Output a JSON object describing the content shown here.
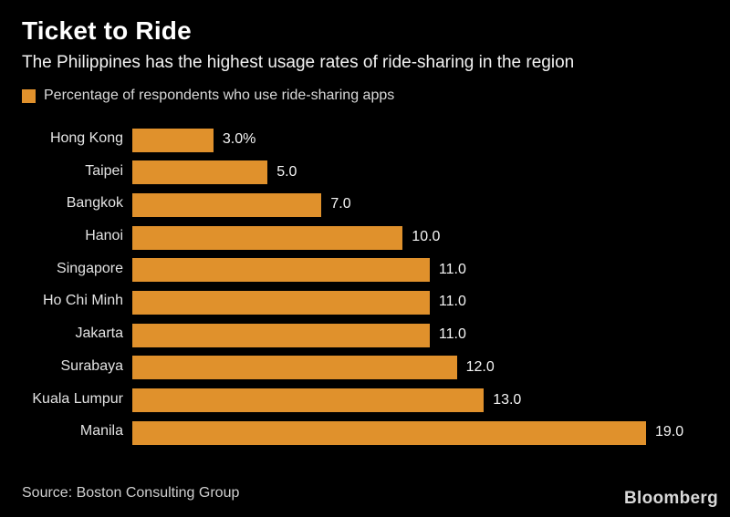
{
  "header": {
    "title": "Ticket to Ride",
    "subtitle": "The Philippines has the highest usage rates of ride-sharing in the region",
    "legend_label": "Percentage of respondents who use ride-sharing apps"
  },
  "footer": {
    "source": "Source: Boston Consulting Group",
    "brand": "Bloomberg"
  },
  "colors": {
    "background": "#000000",
    "bar": "#E0912C",
    "title_text": "#FFFFFF",
    "label_text": "#E3E3E3",
    "value_text": "#F5F5F5"
  },
  "chart_data": {
    "type": "bar",
    "orientation": "horizontal",
    "title": "Ticket to Ride",
    "subtitle": "The Philippines has the highest usage rates of ride-sharing in the region",
    "legend": [
      "Percentage of respondents who use ride-sharing apps"
    ],
    "legend_position": "top-left",
    "categories": [
      "Hong Kong",
      "Taipei",
      "Bangkok",
      "Hanoi",
      "Singapore",
      "Ho Chi Minh",
      "Jakarta",
      "Surabaya",
      "Kuala Lumpur",
      "Manila"
    ],
    "values": [
      3.0,
      5.0,
      7.0,
      10.0,
      11.0,
      11.0,
      11.0,
      12.0,
      13.0,
      19.0
    ],
    "value_labels": [
      "3.0%",
      "5.0",
      "7.0",
      "10.0",
      "11.0",
      "11.0",
      "11.0",
      "12.0",
      "13.0",
      "19.0"
    ],
    "xlabel": "",
    "ylabel": "",
    "xlim": [
      0,
      19
    ],
    "grid": false,
    "bar_color": "#E0912C",
    "source": "Source: Boston Consulting Group",
    "brand": "Bloomberg"
  }
}
